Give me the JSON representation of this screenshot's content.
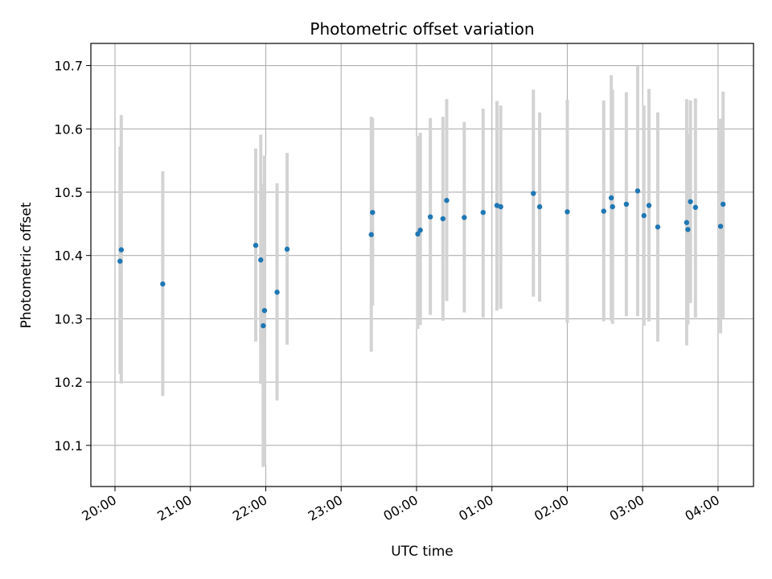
{
  "chart_data": {
    "type": "scatter",
    "title": "Photometric offset variation",
    "xlabel": "UTC time",
    "ylabel": "Photometric offset",
    "x_ticks": [
      "20:00",
      "21:00",
      "22:00",
      "23:00",
      "00:00",
      "01:00",
      "02:00",
      "03:00",
      "04:00"
    ],
    "x_tick_hours": [
      20,
      21,
      22,
      23,
      24,
      25,
      26,
      27,
      28
    ],
    "xlim_hours": [
      19.68,
      28.47
    ],
    "y_ticks": [
      "10.1",
      "10.2",
      "10.3",
      "10.4",
      "10.5",
      "10.6",
      "10.7"
    ],
    "ylim": [
      10.035,
      10.735
    ],
    "grid": true,
    "colors": {
      "marker": "#1f77b4",
      "errorbar": "#d3d3d3",
      "grid": "#b0b0b0"
    },
    "series": [
      {
        "points": [
          {
            "time": "20:04",
            "y": 10.391,
            "low": 10.213,
            "high": 10.572
          },
          {
            "time": "20:05",
            "y": 10.409,
            "low": 10.198,
            "high": 10.622
          },
          {
            "time": "20:38",
            "y": 10.355,
            "low": 10.178,
            "high": 10.533
          },
          {
            "time": "21:52",
            "y": 10.416,
            "low": 10.264,
            "high": 10.569
          },
          {
            "time": "21:56",
            "y": 10.393,
            "low": 10.197,
            "high": 10.591
          },
          {
            "time": "21:58",
            "y": 10.289,
            "low": 10.066,
            "high": 10.513
          },
          {
            "time": "21:59",
            "y": 10.313,
            "low": 10.069,
            "high": 10.558
          },
          {
            "time": "22:09",
            "y": 10.342,
            "low": 10.171,
            "high": 10.514
          },
          {
            "time": "22:17",
            "y": 10.41,
            "low": 10.259,
            "high": 10.562
          },
          {
            "time": "23:24",
            "y": 10.433,
            "low": 10.248,
            "high": 10.619
          },
          {
            "time": "23:25",
            "y": 10.468,
            "low": 10.321,
            "high": 10.617
          },
          {
            "time": "00:01",
            "y": 10.434,
            "low": 10.284,
            "high": 10.589
          },
          {
            "time": "00:03",
            "y": 10.44,
            "low": 10.29,
            "high": 10.594
          },
          {
            "time": "00:11",
            "y": 10.461,
            "low": 10.306,
            "high": 10.617
          },
          {
            "time": "00:21",
            "y": 10.458,
            "low": 10.297,
            "high": 10.619
          },
          {
            "time": "00:24",
            "y": 10.487,
            "low": 10.328,
            "high": 10.647
          },
          {
            "time": "00:38",
            "y": 10.46,
            "low": 10.31,
            "high": 10.611
          },
          {
            "time": "00:53",
            "y": 10.468,
            "low": 10.302,
            "high": 10.632
          },
          {
            "time": "01:04",
            "y": 10.479,
            "low": 10.313,
            "high": 10.644
          },
          {
            "time": "01:07",
            "y": 10.477,
            "low": 10.316,
            "high": 10.637
          },
          {
            "time": "01:33",
            "y": 10.498,
            "low": 10.335,
            "high": 10.662
          },
          {
            "time": "01:38",
            "y": 10.477,
            "low": 10.327,
            "high": 10.626
          },
          {
            "time": "02:00",
            "y": 10.469,
            "low": 10.293,
            "high": 10.646
          },
          {
            "time": "02:29",
            "y": 10.47,
            "low": 10.296,
            "high": 10.645
          },
          {
            "time": "02:35",
            "y": 10.491,
            "low": 10.297,
            "high": 10.685
          },
          {
            "time": "02:36",
            "y": 10.477,
            "low": 10.292,
            "high": 10.662
          },
          {
            "time": "02:47",
            "y": 10.481,
            "low": 10.304,
            "high": 10.658
          },
          {
            "time": "02:56",
            "y": 10.502,
            "low": 10.304,
            "high": 10.699
          },
          {
            "time": "03:01",
            "y": 10.463,
            "low": 10.289,
            "high": 10.637
          },
          {
            "time": "03:05",
            "y": 10.479,
            "low": 10.296,
            "high": 10.663
          },
          {
            "time": "03:12",
            "y": 10.445,
            "low": 10.264,
            "high": 10.626
          },
          {
            "time": "03:35",
            "y": 10.452,
            "low": 10.258,
            "high": 10.647
          },
          {
            "time": "03:36",
            "y": 10.441,
            "low": 10.291,
            "high": 10.592
          },
          {
            "time": "03:38",
            "y": 10.485,
            "low": 10.325,
            "high": 10.645
          },
          {
            "time": "03:42",
            "y": 10.476,
            "low": 10.302,
            "high": 10.648
          },
          {
            "time": "04:02",
            "y": 10.446,
            "low": 10.277,
            "high": 10.616
          },
          {
            "time": "04:04",
            "y": 10.481,
            "low": 10.301,
            "high": 10.659
          }
        ]
      }
    ]
  }
}
